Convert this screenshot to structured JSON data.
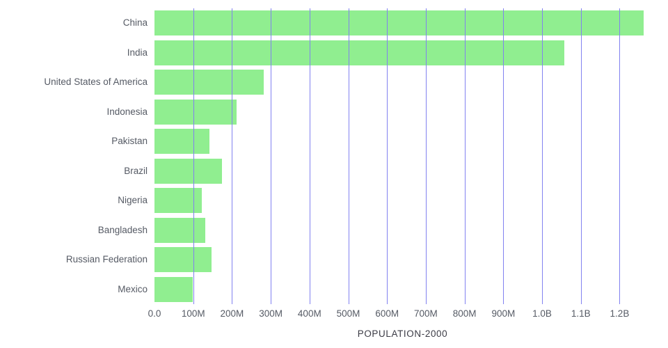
{
  "chart_data": {
    "type": "bar",
    "orientation": "horizontal",
    "title": "",
    "xlabel": "POPULATION-2000",
    "ylabel": "",
    "categories": [
      "China",
      "India",
      "United States of America",
      "Indonesia",
      "Pakistan",
      "Brazil",
      "Nigeria",
      "Bangladesh",
      "Russian Federation",
      "Mexico"
    ],
    "values_millions": [
      1262.6,
      1056.6,
      282.2,
      211.5,
      142.3,
      174.8,
      122.3,
      131.3,
      146.6,
      98.9
    ],
    "x_ticks": [
      {
        "label": "0.0",
        "value": 0
      },
      {
        "label": "100M",
        "value": 100
      },
      {
        "label": "200M",
        "value": 200
      },
      {
        "label": "300M",
        "value": 300
      },
      {
        "label": "400M",
        "value": 400
      },
      {
        "label": "500M",
        "value": 500
      },
      {
        "label": "600M",
        "value": 600
      },
      {
        "label": "700M",
        "value": 700
      },
      {
        "label": "800M",
        "value": 800
      },
      {
        "label": "900M",
        "value": 900
      },
      {
        "label": "1.0B",
        "value": 1000
      },
      {
        "label": "1.1B",
        "value": 1100
      },
      {
        "label": "1.2B",
        "value": 1200
      }
    ],
    "xlim_millions": [
      0,
      1280
    ],
    "grid": true,
    "legend": "none",
    "bar_color": "#90ee90",
    "gridline_color": "#8181f0",
    "label_color": "#555a64"
  }
}
